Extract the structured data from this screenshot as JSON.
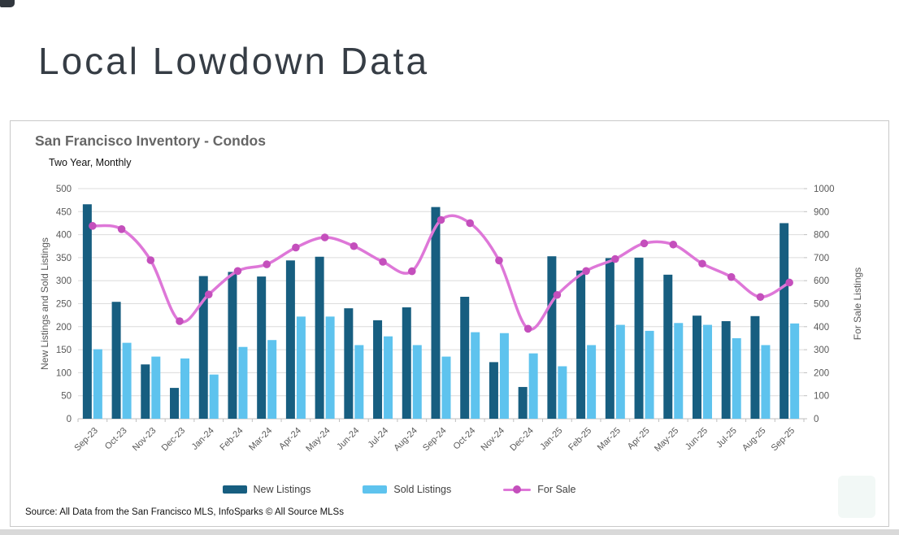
{
  "page": {
    "title": "Local Lowdown Data"
  },
  "card": {
    "title": "San Francisco Inventory - Condos",
    "subtitle": "Two Year, Monthly",
    "source": "Source: All Data from the San Francisco MLS, InfoSparks © All Source MLSs"
  },
  "chart_data": {
    "type": "combo",
    "title": "San Francisco Inventory - Condos",
    "subtitle": "Two Year, Monthly",
    "grid": true,
    "legend_position": "bottom",
    "categories": [
      "Sep-23",
      "Oct-23",
      "Nov-23",
      "Dec-23",
      "Jan-24",
      "Feb-24",
      "Mar-24",
      "Apr-24",
      "May-24",
      "Jun-24",
      "Jul-24",
      "Aug-24",
      "Sep-24",
      "Oct-24",
      "Nov-24",
      "Dec-24",
      "Jan-25",
      "Feb-25",
      "Mar-25",
      "Apr-25",
      "May-25",
      "Jun-25",
      "Jul-25",
      "Aug-25",
      "Sep-25"
    ],
    "series": [
      {
        "name": "New Listings",
        "type": "bar",
        "axis": "left",
        "color": "#175e80",
        "values": [
          466,
          254,
          118,
          67,
          310,
          319,
          309,
          344,
          352,
          240,
          214,
          242,
          460,
          265,
          123,
          69,
          353,
          322,
          349,
          350,
          313,
          224,
          212,
          223,
          425
        ]
      },
      {
        "name": "Sold Listings",
        "type": "bar",
        "axis": "left",
        "color": "#5ec3ee",
        "values": [
          151,
          165,
          135,
          131,
          96,
          156,
          171,
          222,
          222,
          160,
          179,
          160,
          135,
          188,
          186,
          142,
          114,
          160,
          204,
          191,
          208,
          204,
          175,
          160,
          207
        ]
      },
      {
        "name": "For Sale",
        "type": "line",
        "axis": "right",
        "color": "#de77d8",
        "marker_color": "#c44fbc",
        "values": [
          838,
          824,
          689,
          424,
          540,
          642,
          671,
          744,
          788,
          750,
          682,
          641,
          864,
          850,
          688,
          391,
          538,
          642,
          694,
          762,
          757,
          674,
          616,
          529,
          592
        ]
      }
    ],
    "axes": {
      "left": {
        "label": "New Listings and Sold Listings",
        "min": 0,
        "max": 500,
        "step": 50
      },
      "right": {
        "label": "For Sale Listings",
        "min": 0,
        "max": 1000,
        "step": 100
      }
    }
  }
}
